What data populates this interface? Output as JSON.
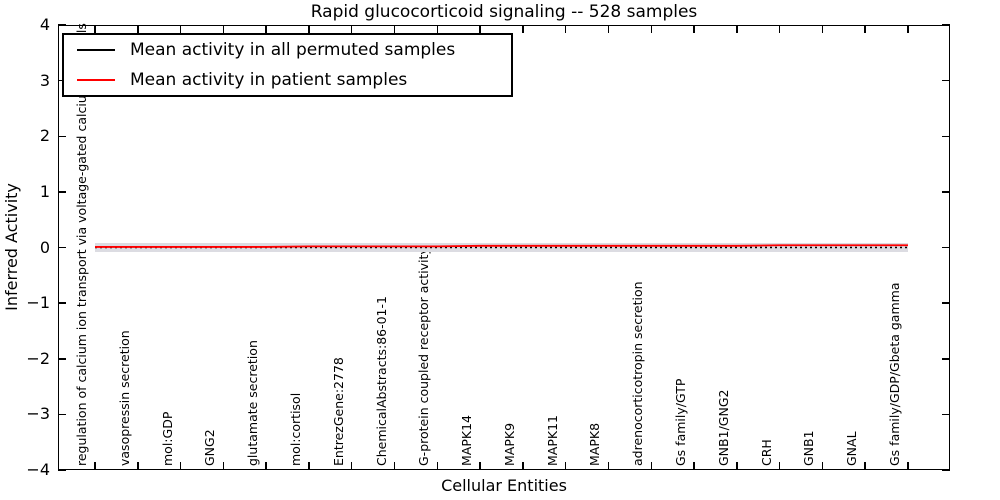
{
  "title": "Rapid glucocorticoid signaling -- 528 samples",
  "axes": {
    "x_label": "Cellular Entities",
    "y_label": "Inferred Activity",
    "y_ticks": [
      4,
      3,
      2,
      1,
      0,
      -1,
      -2,
      -3,
      -4
    ]
  },
  "legend": {
    "entries": [
      {
        "label": "Mean activity in all permuted samples",
        "color": "#000000"
      },
      {
        "label": "Mean activity in patient samples",
        "color": "#ff0000"
      }
    ]
  },
  "colors": {
    "frame": "#000000",
    "permuted_line": "#000000",
    "patient_line": "#ff0000",
    "band": "#dcdce2"
  },
  "chart_data": {
    "type": "line",
    "title": "Rapid glucocorticoid signaling -- 528 samples",
    "xlabel": "Cellular Entities",
    "ylabel": "Inferred Activity",
    "ylim": [
      -4,
      4
    ],
    "grid": false,
    "legend_position": "upper left",
    "categories": [
      "regulation of calcium ion transport via voltage-gated calcium channels",
      "vasopressin secretion",
      "mol:GDP",
      "GNG2",
      "glutamate secretion",
      "mol:cortisol",
      "EntrezGene:2778",
      "ChemicalAbstracts:86-01-1",
      "G-protein coupled receptor activity",
      "MAPK14",
      "MAPK9",
      "MAPK11",
      "MAPK8",
      "adrenocorticotropin secretion",
      "Gs family/GTP",
      "GNB1/GNG2",
      "CRH",
      "GNB1",
      "GNAL",
      "Gs family/GDP/Gbeta gamma"
    ],
    "series": [
      {
        "name": "Mean activity in all permuted samples",
        "color": "#000000",
        "style": "dotted",
        "values": [
          0.0,
          0.0,
          0.0,
          0.0,
          0.0,
          0.0,
          0.0,
          0.0,
          0.0,
          0.0,
          0.0,
          0.0,
          0.0,
          0.0,
          0.0,
          0.0,
          0.0,
          0.0,
          0.0,
          0.0
        ]
      },
      {
        "name": "Mean activity in patient samples",
        "color": "#ff0000",
        "style": "solid",
        "values": [
          0.01,
          0.01,
          0.01,
          0.01,
          0.01,
          0.02,
          0.02,
          0.02,
          0.02,
          0.03,
          0.03,
          0.03,
          0.03,
          0.03,
          0.03,
          0.03,
          0.04,
          0.04,
          0.04,
          0.04
        ]
      }
    ],
    "band": {
      "around_series": "Mean activity in all permuted samples",
      "halfwidth": 0.08,
      "color": "#dcdce2"
    }
  }
}
